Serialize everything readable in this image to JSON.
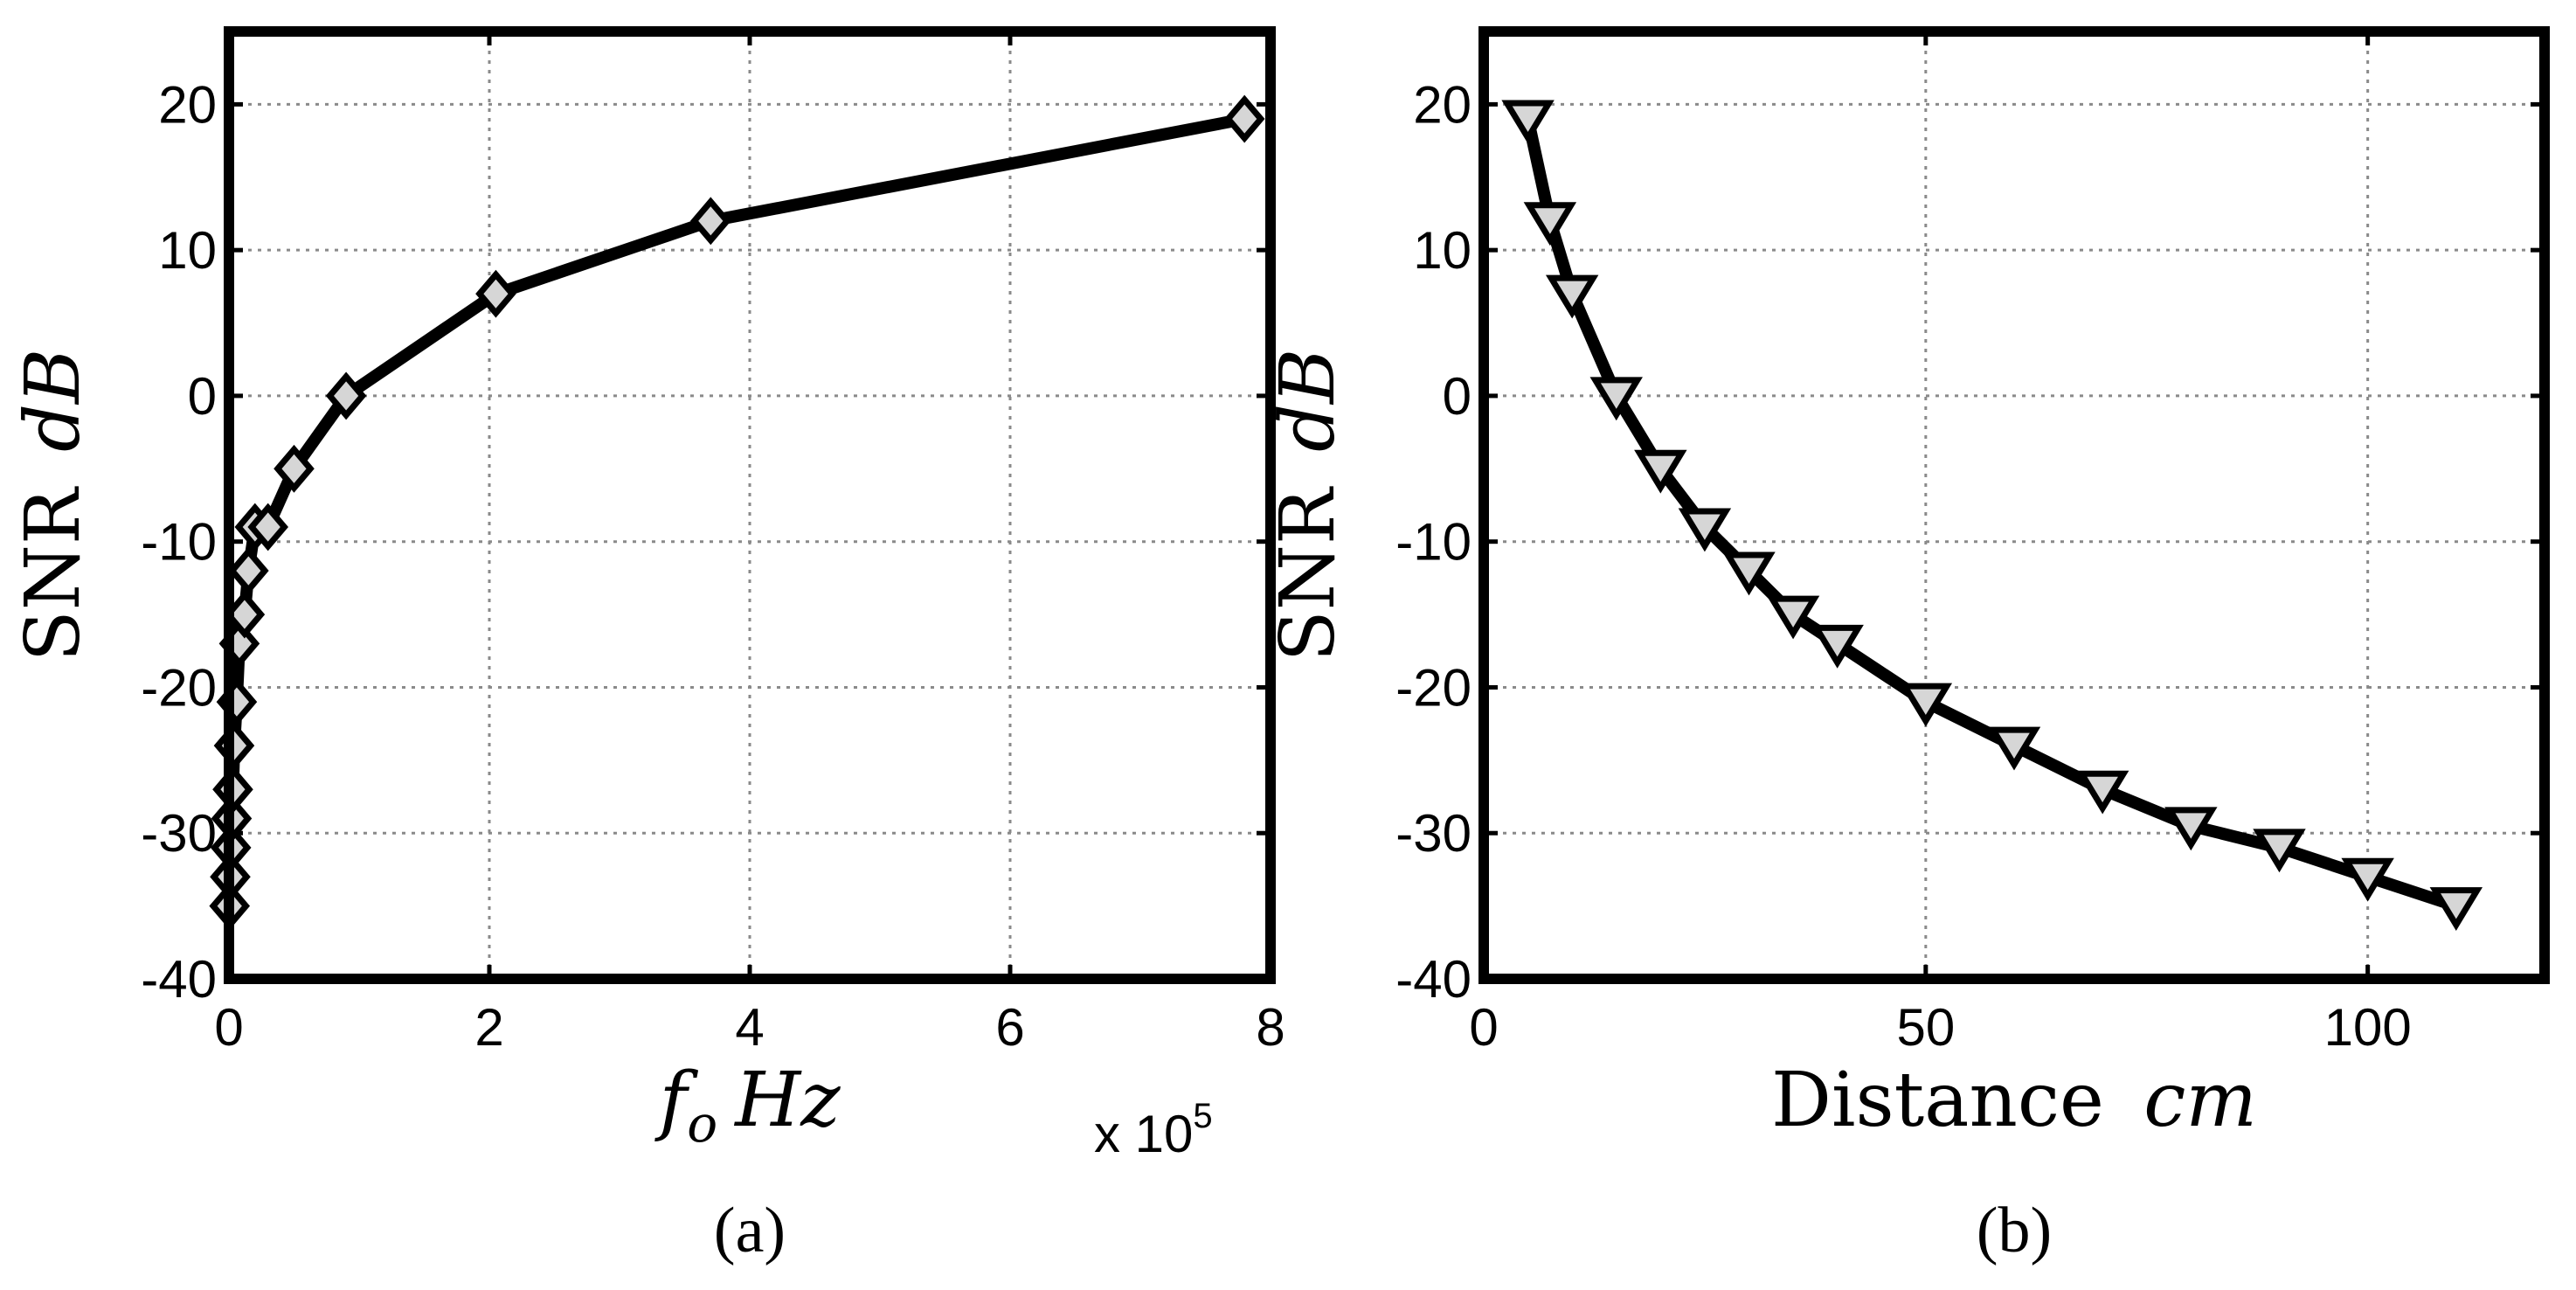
{
  "chart_data": [
    {
      "type": "line",
      "panel_label": "(a)",
      "xlabel_main": "f",
      "xlabel_sub": "o",
      "xlabel_unit": "Hz",
      "x_multiplier": "x 10",
      "x_multiplier_exp": "5",
      "ylabel_text": "SNR",
      "ylabel_unit": "dB",
      "xlim": [
        0,
        8
      ],
      "ylim": [
        -40,
        25
      ],
      "xticks": [
        0,
        2,
        4,
        6,
        8
      ],
      "yticks": [
        -40,
        -30,
        -20,
        -10,
        0,
        10,
        20
      ],
      "grid": true,
      "marker": "diamond",
      "series": [
        {
          "x": [
            0.005,
            0.01,
            0.015,
            0.02,
            0.03,
            0.04,
            0.06,
            0.08,
            0.12,
            0.15,
            0.2,
            0.3,
            0.5,
            0.9,
            2.05,
            3.7,
            7.8
          ],
          "y": [
            -35,
            -33,
            -31,
            -29,
            -27,
            -24,
            -21,
            -17,
            -15,
            -12,
            -9,
            -9,
            -5,
            0,
            7,
            12,
            19
          ]
        }
      ]
    },
    {
      "type": "line",
      "panel_label": "(b)",
      "xlabel_text": "Distance",
      "xlabel_unit": "cm",
      "ylabel_text": "SNR",
      "ylabel_unit": "dB",
      "xlim": [
        0,
        120
      ],
      "ylim": [
        -40,
        25
      ],
      "xticks": [
        0,
        50,
        100
      ],
      "yticks": [
        -40,
        -30,
        -20,
        -10,
        0,
        10,
        20
      ],
      "grid": true,
      "marker": "triangle-down",
      "series": [
        {
          "x": [
            5,
            7.5,
            10,
            15,
            20,
            25,
            30,
            35,
            40,
            50,
            60,
            70,
            80,
            90,
            100,
            110
          ],
          "y": [
            19,
            12,
            7,
            0,
            -5,
            -9,
            -12,
            -15,
            -17,
            -21,
            -24,
            -27,
            -29.5,
            -31,
            -33,
            -35
          ]
        }
      ]
    }
  ]
}
